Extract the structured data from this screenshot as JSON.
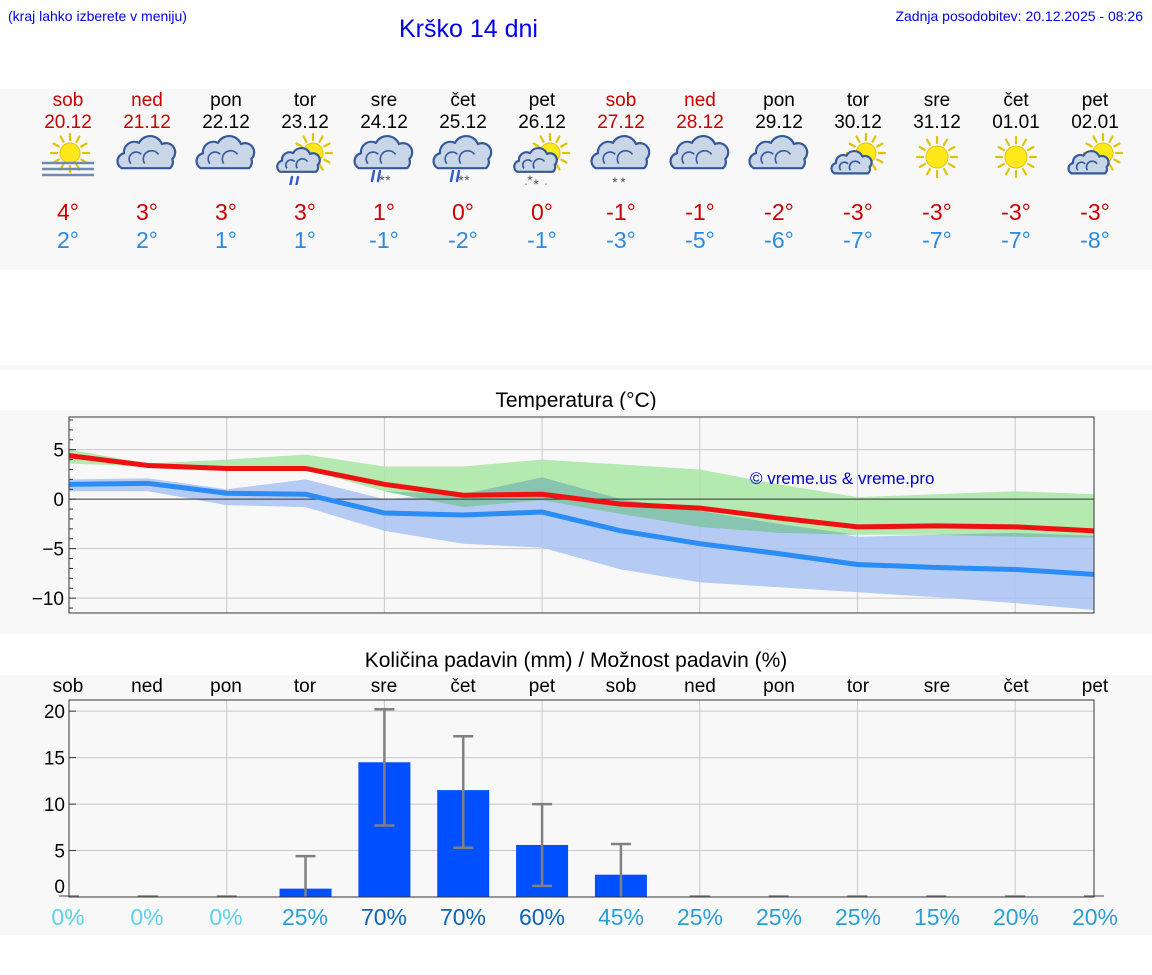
{
  "header": {
    "hint": "(kraj lahko izberete v meniju)",
    "title": "Krško 14 dni",
    "updated": "Zadnja posodobitev: 20.12.2025 - 08:26"
  },
  "days": [
    {
      "name": "sob",
      "date": "20.12",
      "weekend": true,
      "icon": "sun-fog-icon",
      "tmax": "4°",
      "tmin": "2°"
    },
    {
      "name": "ned",
      "date": "21.12",
      "weekend": true,
      "icon": "cloudy-icon",
      "tmax": "3°",
      "tmin": "2°"
    },
    {
      "name": "pon",
      "date": "22.12",
      "weekend": false,
      "icon": "cloudy-icon",
      "tmax": "3°",
      "tmin": "1°"
    },
    {
      "name": "tor",
      "date": "23.12",
      "weekend": false,
      "icon": "sun-cloud-rain-icon",
      "tmax": "3°",
      "tmin": "1°"
    },
    {
      "name": "sre",
      "date": "24.12",
      "weekend": false,
      "icon": "cloud-sleet-icon",
      "tmax": "1°",
      "tmin": "-1°"
    },
    {
      "name": "čet",
      "date": "25.12",
      "weekend": false,
      "icon": "cloud-sleet-icon",
      "tmax": "0°",
      "tmin": "-2°"
    },
    {
      "name": "pet",
      "date": "26.12",
      "weekend": false,
      "icon": "sun-cloud-snow-icon",
      "tmax": "0°",
      "tmin": "-1°"
    },
    {
      "name": "sob",
      "date": "27.12",
      "weekend": true,
      "icon": "cloud-snow-icon",
      "tmax": "-1°",
      "tmin": "-3°"
    },
    {
      "name": "ned",
      "date": "28.12",
      "weekend": true,
      "icon": "cloudy-icon",
      "tmax": "-1°",
      "tmin": "-5°"
    },
    {
      "name": "pon",
      "date": "29.12",
      "weekend": false,
      "icon": "cloudy-icon",
      "tmax": "-2°",
      "tmin": "-6°"
    },
    {
      "name": "tor",
      "date": "30.12",
      "weekend": false,
      "icon": "sun-cloud-icon",
      "tmax": "-3°",
      "tmin": "-7°"
    },
    {
      "name": "sre",
      "date": "31.12",
      "weekend": false,
      "icon": "sun-icon",
      "tmax": "-3°",
      "tmin": "-7°"
    },
    {
      "name": "čet",
      "date": "01.01",
      "weekend": false,
      "icon": "sun-icon",
      "tmax": "-3°",
      "tmin": "-7°"
    },
    {
      "name": "pet",
      "date": "02.01",
      "weekend": false,
      "icon": "sun-cloud-icon",
      "tmax": "-3°",
      "tmin": "-8°"
    }
  ],
  "colors": {
    "max_line": "#ee1111",
    "min_line": "#2a8cf4",
    "max_band": "#a8e6a3",
    "min_band": "#a9c3f3",
    "overlap_band": "#7fc4a3",
    "bar": "#0050ff",
    "errbar": "#808080",
    "weekend_text": "#cc0000"
  },
  "chart_data": [
    {
      "type": "line",
      "title": "Temperatura (°C)",
      "watermark": "© vreme.us & vreme.pro",
      "x": [
        0,
        1,
        2,
        3,
        4,
        5,
        6,
        7,
        8,
        9,
        10,
        11,
        12,
        13
      ],
      "ylim": [
        -11.5,
        8.3
      ],
      "yticks": [
        5,
        0,
        -5,
        -10
      ],
      "ytick_labels": [
        "5",
        "0",
        "−5",
        "−10"
      ],
      "series": [
        {
          "name": "max",
          "values": [
            4.4,
            3.4,
            3.1,
            3.1,
            1.5,
            0.4,
            0.5,
            -0.5,
            -0.9,
            -1.9,
            -2.8,
            -2.7,
            -2.8,
            -3.2
          ],
          "band_low": [
            3.6,
            3.3,
            3.2,
            3.0,
            0.8,
            -0.8,
            -0.1,
            -1.5,
            -2.8,
            -3.4,
            -3.6,
            -3.6,
            -3.8,
            -3.9
          ],
          "band_high": [
            5.0,
            3.6,
            4.0,
            4.5,
            3.3,
            3.3,
            4.0,
            3.5,
            3.0,
            1.5,
            0.2,
            0.5,
            0.8,
            0.5
          ]
        },
        {
          "name": "min",
          "values": [
            1.5,
            1.6,
            0.6,
            0.5,
            -1.4,
            -1.6,
            -1.3,
            -3.2,
            -4.5,
            -5.5,
            -6.6,
            -6.9,
            -7.1,
            -7.6
          ],
          "band_low": [
            0.8,
            0.8,
            -0.6,
            -0.8,
            -3.2,
            -4.5,
            -4.9,
            -7.1,
            -8.4,
            -8.9,
            -9.4,
            -9.9,
            -10.5,
            -11.2
          ],
          "band_high": [
            2.0,
            2.1,
            1.0,
            2.0,
            0.0,
            0.5,
            2.2,
            0.0,
            -1.2,
            -2.5,
            -3.8,
            -3.6,
            -3.4,
            -3.7
          ]
        }
      ]
    },
    {
      "type": "bar",
      "title": "Količina padavin (mm) / Možnost padavin (%)",
      "categories": [
        "sob",
        "ned",
        "pon",
        "tor",
        "sre",
        "čet",
        "pet",
        "sob",
        "ned",
        "pon",
        "tor",
        "sre",
        "čet",
        "pet"
      ],
      "values": [
        0,
        0,
        0,
        0.9,
        14.5,
        11.5,
        5.6,
        2.4,
        0,
        0,
        0,
        0,
        0,
        0
      ],
      "err_low": [
        0,
        0,
        0,
        0,
        7.7,
        5.3,
        1.2,
        0,
        0,
        0,
        0,
        0,
        0,
        0
      ],
      "err_high": [
        0,
        0,
        0,
        4.4,
        20.2,
        17.3,
        10.0,
        5.7,
        0,
        0,
        0,
        0,
        0,
        0
      ],
      "ylim": [
        0,
        21.2
      ],
      "yticks": [
        20,
        15,
        10,
        5,
        0
      ],
      "probability": [
        "0%",
        "0%",
        "0%",
        "25%",
        "70%",
        "70%",
        "60%",
        "45%",
        "25%",
        "25%",
        "25%",
        "15%",
        "20%",
        "20%"
      ],
      "probability_colors": [
        "#5cd3ea",
        "#5cd3ea",
        "#5cd3ea",
        "#2a9fd6",
        "#0d64b8",
        "#0d64b8",
        "#0d64b8",
        "#2a9fd6",
        "#2a9fd6",
        "#2a9fd6",
        "#2a9fd6",
        "#2a9fd6",
        "#2a9fd6",
        "#2a9fd6"
      ]
    }
  ]
}
